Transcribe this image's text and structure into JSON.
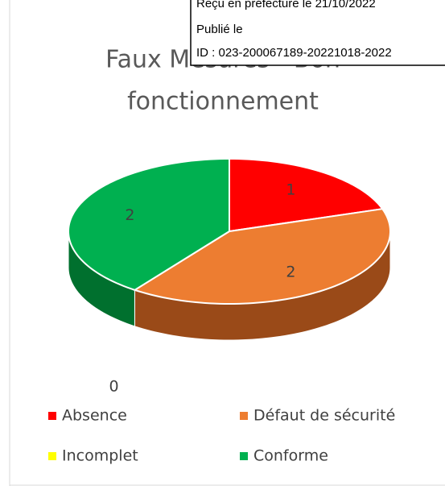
{
  "chart_data": {
    "type": "pie3d",
    "title_lines": [
      "Faux Mesures - Bon",
      "fonctionnement"
    ],
    "categories": [
      "Absence",
      "Défaut de sécurité",
      "Incomplet",
      "Conforme"
    ],
    "values": [
      1,
      2,
      0,
      2
    ],
    "colors": [
      "#ff0000",
      "#ed7d31",
      "#ffff00",
      "#00b050"
    ],
    "side_colors": [
      "#a00000",
      "#9a4a18",
      "#a0a000",
      "#00702e"
    ],
    "legend": "bottom"
  },
  "stamp": {
    "lines": [
      "Reçu en préfecture le 21/10/2022",
      "Publié le",
      "ID : 023-200067189-20221018-2022"
    ]
  }
}
